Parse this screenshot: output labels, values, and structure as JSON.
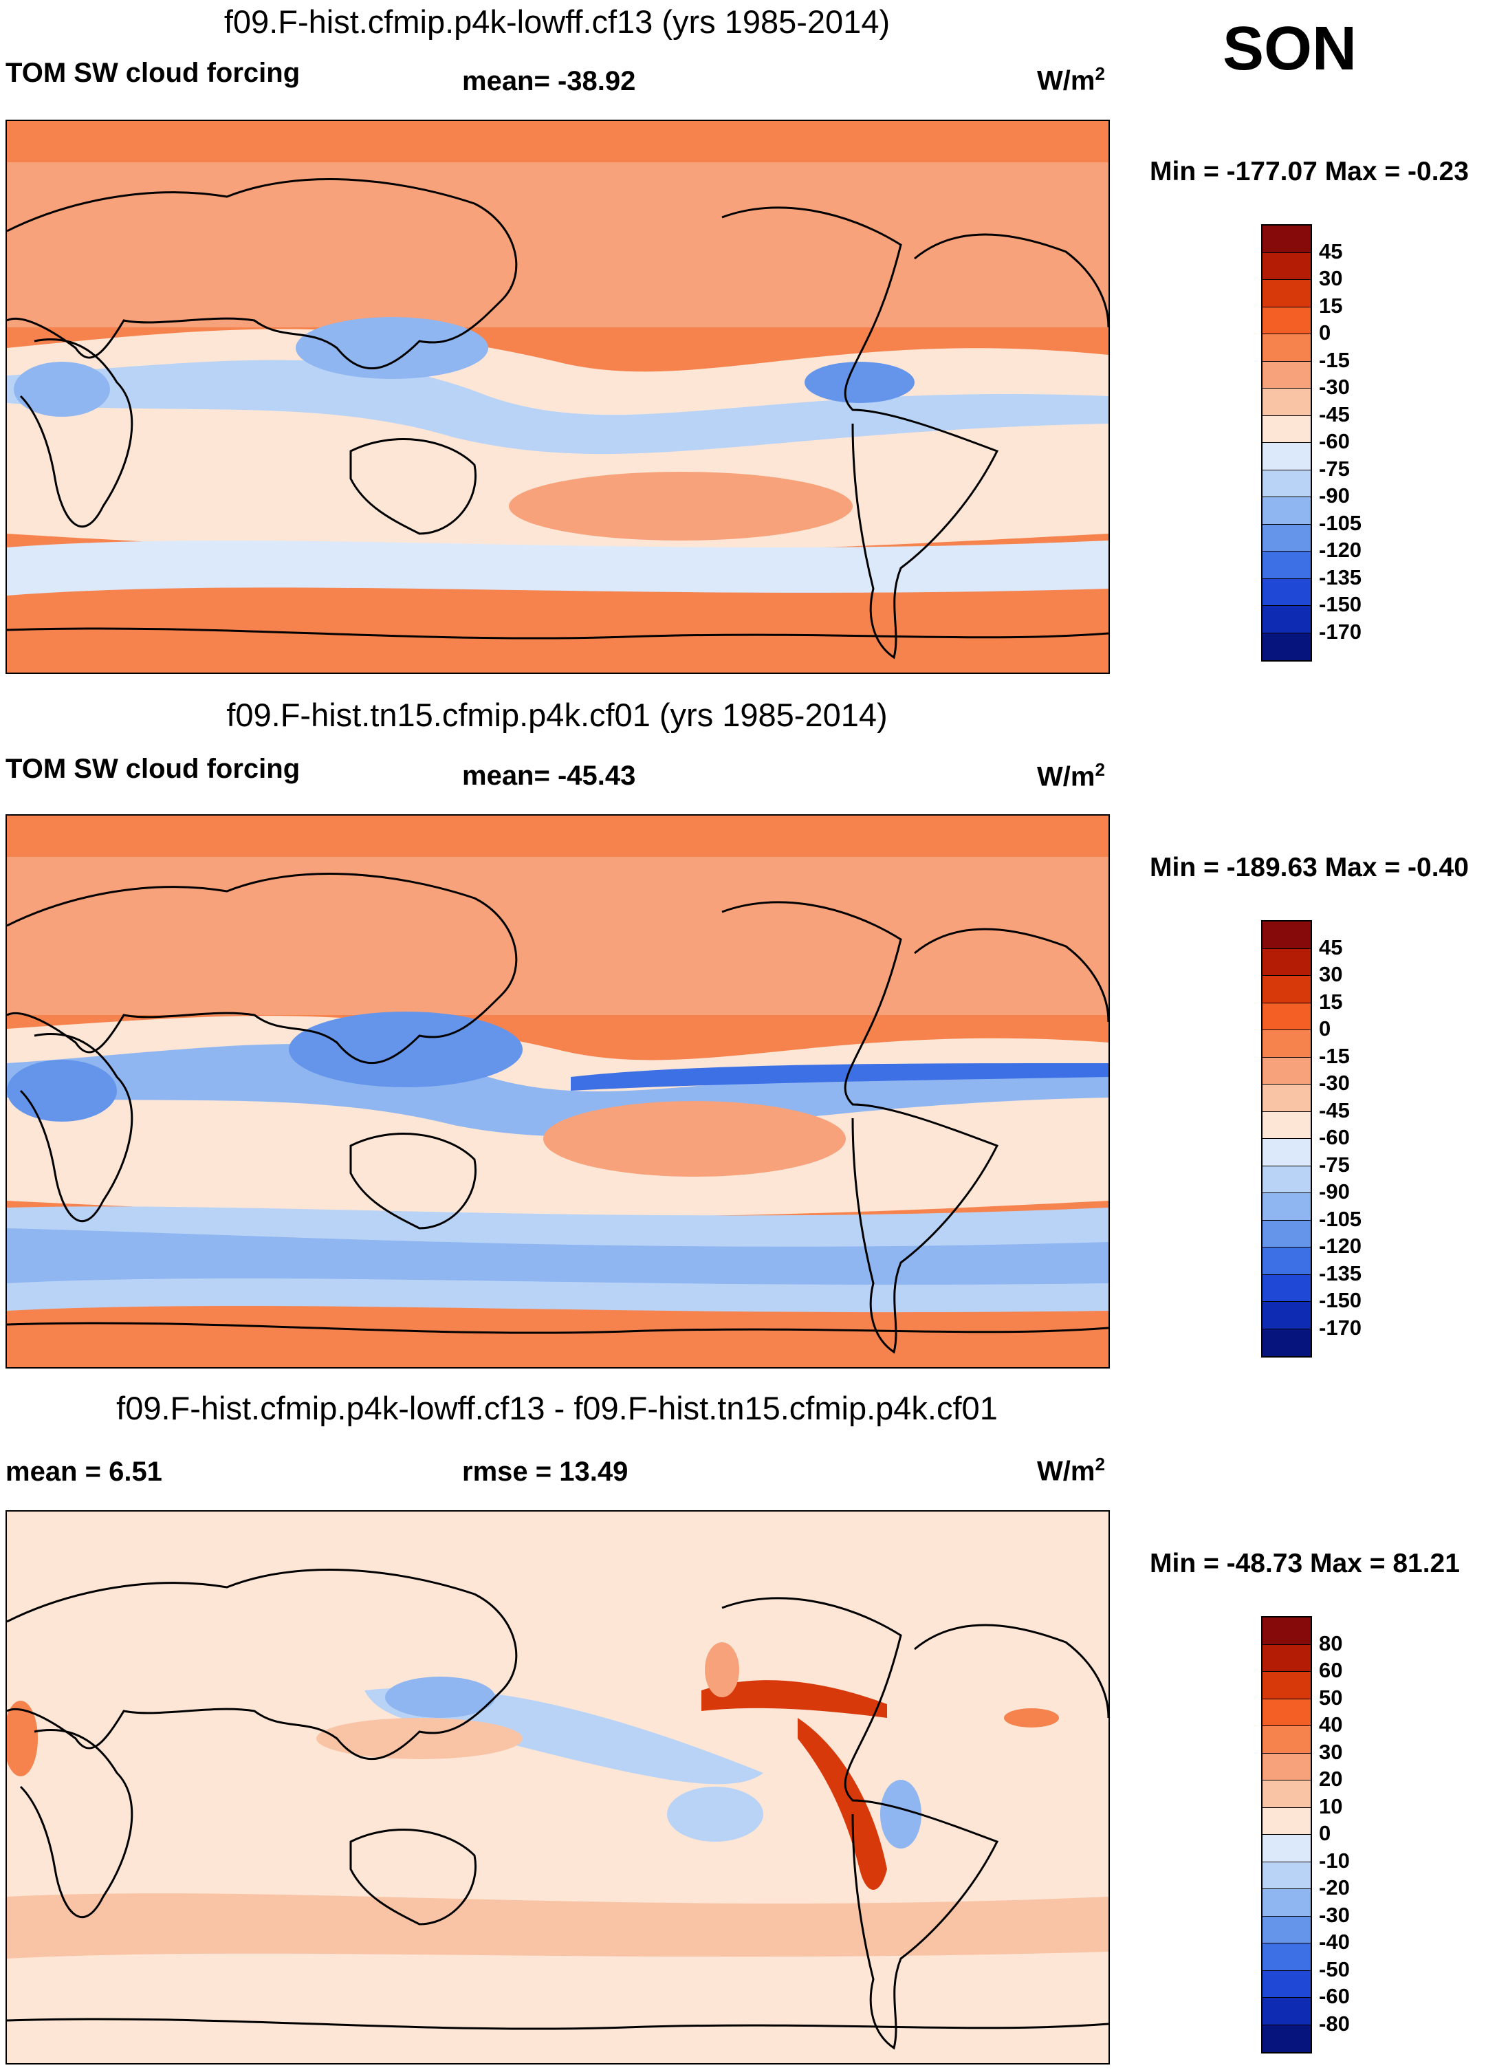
{
  "season": "SON",
  "panels": [
    {
      "title": "f09.F-hist.cfmip.p4k-lowff.cf13 (yrs 1985-2014)",
      "left_label": "TOM SW cloud forcing",
      "center_label": "mean= -38.92",
      "units": "W/m",
      "units_exp": "2",
      "minmax": "Min = -177.07 Max =  -0.23",
      "colorbar_ticks": [
        "45",
        "30",
        "15",
        "0",
        "-15",
        "-30",
        "-45",
        "-60",
        "-75",
        "-90",
        "-105",
        "-120",
        "-135",
        "-150",
        "-170"
      ]
    },
    {
      "title": "f09.F-hist.tn15.cfmip.p4k.cf01 (yrs 1985-2014)",
      "left_label": "TOM SW cloud forcing",
      "center_label": "mean= -45.43",
      "units": "W/m",
      "units_exp": "2",
      "minmax": "Min = -189.63 Max =  -0.40",
      "colorbar_ticks": [
        "45",
        "30",
        "15",
        "0",
        "-15",
        "-30",
        "-45",
        "-60",
        "-75",
        "-90",
        "-105",
        "-120",
        "-135",
        "-150",
        "-170"
      ]
    },
    {
      "title": "f09.F-hist.cfmip.p4k-lowff.cf13 - f09.F-hist.tn15.cfmip.p4k.cf01",
      "left_label": "mean =   6.51",
      "center_label": "rmse =  13.49",
      "units": "W/m",
      "units_exp": "2",
      "minmax": "Min = -48.73 Max =  81.21",
      "colorbar_ticks": [
        "80",
        "60",
        "50",
        "40",
        "30",
        "20",
        "10",
        "0",
        "-10",
        "-20",
        "-30",
        "-40",
        "-50",
        "-60",
        "-80"
      ]
    }
  ],
  "colorbar_colors": [
    "#870a0a",
    "#b51c06",
    "#d8390a",
    "#f35f24",
    "#f6834d",
    "#f7a27b",
    "#f9c4a6",
    "#fde6d6",
    "#dbe9fb",
    "#b9d3f6",
    "#8fb6f0",
    "#6595ea",
    "#3e70e5",
    "#1f48d6",
    "#0e2bb4",
    "#06157e"
  ],
  "map_colors": {
    "panel1": {
      "base": "#f7a27b",
      "polar": "#f6834d",
      "tropics": "#b9d3f6",
      "subtropics": "#fde6d6",
      "strong": "#6595ea"
    },
    "panel2": {
      "base": "#f7a27b",
      "polar": "#f6834d",
      "tropics": "#8fb6f0",
      "subtropics": "#fde6d6",
      "strong": "#3e70e5"
    },
    "panel3": {
      "base": "#fde6d6",
      "pos": "#f9c4a6",
      "neg": "#b9d3f6",
      "strongpos": "#d8390a",
      "strongneg": "#8fb6f0"
    }
  }
}
